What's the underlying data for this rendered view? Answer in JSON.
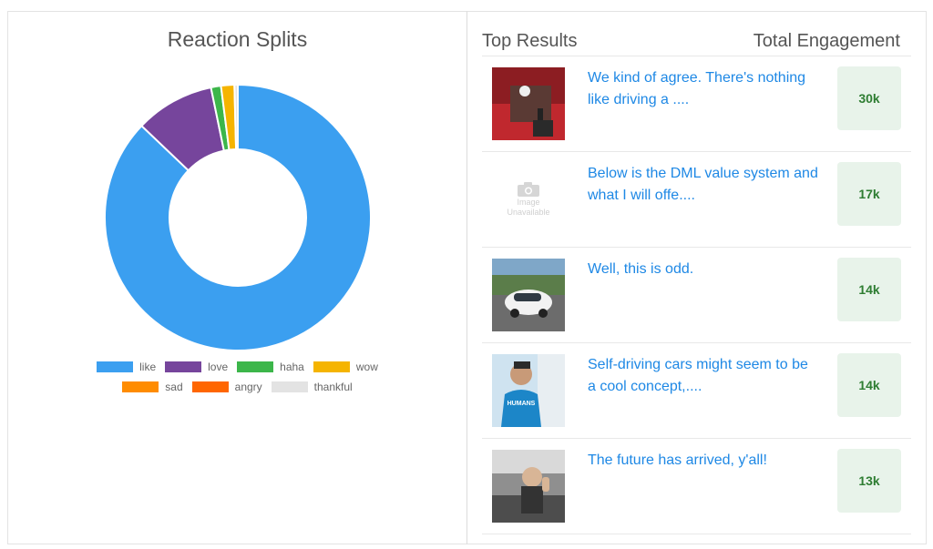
{
  "chart_data": {
    "type": "pie",
    "title": "Reaction Splits",
    "categories": [
      "like",
      "love",
      "haha",
      "wow",
      "sad",
      "angry",
      "thankful"
    ],
    "values": [
      86,
      9.5,
      1.2,
      1.6,
      0,
      0,
      0.4
    ],
    "colors": [
      "#3b9ff0",
      "#76459c",
      "#3cb64a",
      "#f5b400",
      "#ff8c00",
      "#ff6600",
      "#e3e3e3"
    ],
    "donut": true,
    "legend": "bottom"
  },
  "results": {
    "header_left": "Top Results",
    "header_right": "Total Engagement",
    "items": [
      {
        "text": "We kind of agree. There's nothing like driving a ....",
        "engagement": "30k",
        "thumb": "car-gearshift"
      },
      {
        "text": "Below is the DML value system and what I will offe....",
        "engagement": "17k",
        "thumb": "image-unavailable",
        "thumb_line1": "Image",
        "thumb_line2": "Unavailable"
      },
      {
        "text": "Well, this is odd.",
        "engagement": "14k",
        "thumb": "self-driving-car"
      },
      {
        "text": "Self-driving cars might seem to be a cool concept,....",
        "engagement": "14k",
        "thumb": "person-humans-shirt",
        "thumb_caption": "HUMANS"
      },
      {
        "text": "The future has arrived, y'all!",
        "engagement": "13k",
        "thumb": "person-in-car"
      }
    ]
  }
}
